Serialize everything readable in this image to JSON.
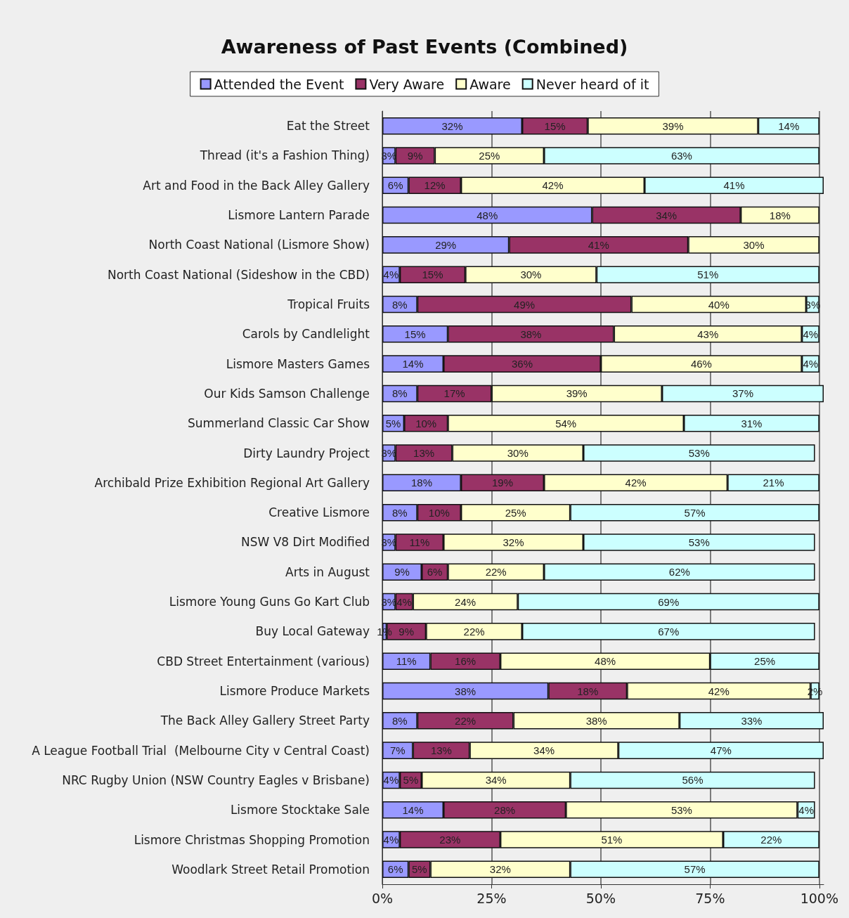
{
  "chart_data": {
    "type": "bar",
    "orientation": "horizontal",
    "stacked": true,
    "title": "Awareness of Past Events (Combined)",
    "categories": [
      "Eat the Street",
      "Thread (it's a Fashion Thing)",
      "Art and Food in the Back Alley Gallery",
      "Lismore Lantern Parade",
      "North Coast National (Lismore Show)",
      "North Coast National (Sideshow in the CBD)",
      "Tropical Fruits",
      "Carols by Candlelight",
      "Lismore Masters Games",
      "Our Kids Samson Challenge",
      "Summerland Classic Car Show",
      "Dirty Laundry Project",
      "Archibald Prize Exhibition Regional Art Gallery",
      "Creative Lismore",
      "NSW V8 Dirt Modified",
      "Arts in August",
      "Lismore Young Guns Go Kart Club",
      "Buy Local Gateway",
      "CBD Street Entertainment (various)",
      "Lismore Produce Markets",
      "The Back Alley Gallery Street Party",
      "A League Football Trial  (Melbourne City v Central Coast)",
      "NRC Rugby Union (NSW Country Eagles v Brisbane)",
      "Lismore Stocktake Sale",
      "Lismore Christmas Shopping Promotion",
      "Woodlark Street Retail Promotion"
    ],
    "series": [
      {
        "name": "Attended the Event",
        "color": "#9999ff",
        "values": [
          32,
          3,
          6,
          48,
          29,
          4,
          8,
          15,
          14,
          8,
          5,
          3,
          18,
          8,
          3,
          9,
          3,
          1,
          11,
          38,
          8,
          7,
          4,
          14,
          4,
          6
        ],
        "value_labels": [
          "32%",
          "3%",
          "6%",
          "48%",
          "29%",
          "4%",
          "8%",
          "15%",
          "14%",
          "8%",
          "5%",
          "3%",
          "18%",
          "8%",
          "3%",
          "9%",
          "3%",
          "1%",
          "11%",
          "38%",
          "8%",
          "7%",
          "4%",
          "14%",
          "4%",
          "6%"
        ]
      },
      {
        "name": "Very Aware",
        "color": "#993366",
        "values": [
          15,
          9,
          12,
          34,
          41,
          15,
          49,
          38,
          36,
          17,
          10,
          13,
          19,
          10,
          11,
          6,
          4,
          9,
          16,
          18,
          22,
          13,
          5,
          28,
          23,
          5
        ],
        "value_labels": [
          "15%",
          "9%",
          "12%",
          "34%",
          "41%",
          "15%",
          "49%",
          "38%",
          "36%",
          "17%",
          "10%",
          "13%",
          "19%",
          "10%",
          "11%",
          "6%",
          "4%",
          "9%",
          "16%",
          "18%",
          "22%",
          "13%",
          "5%",
          "28%",
          "23%",
          "5%"
        ]
      },
      {
        "name": "Aware",
        "color": "#ffffcc",
        "values": [
          39,
          25,
          42,
          18,
          30,
          30,
          40,
          43,
          46,
          39,
          54,
          30,
          42,
          25,
          32,
          22,
          24,
          22,
          48,
          42,
          38,
          34,
          34,
          53,
          51,
          32
        ],
        "value_labels": [
          "39%",
          "25%",
          "42%",
          "18%",
          "30%",
          "30%",
          "40%",
          "43%",
          "46%",
          "39%",
          "54%",
          "30%",
          "42%",
          "25%",
          "32%",
          "22%",
          "24%",
          "22%",
          "48%",
          "42%",
          "38%",
          "34%",
          "34%",
          "53%",
          "51%",
          "32%"
        ]
      },
      {
        "name": "Never heard of it",
        "color": "#ccffff",
        "values": [
          14,
          63,
          41,
          null,
          null,
          51,
          3,
          4,
          4,
          37,
          31,
          53,
          21,
          57,
          53,
          62,
          69,
          67,
          25,
          2,
          33,
          47,
          56,
          4,
          22,
          57
        ],
        "value_labels": [
          "14%",
          "63%",
          "41%",
          null,
          null,
          "51%",
          "3%",
          "4%",
          "4%",
          "37%",
          "31%",
          "53%",
          "21%",
          "57%",
          "53%",
          "62%",
          "69%",
          "67%",
          "25%",
          "2%",
          "33%",
          "47%",
          "56%",
          "4%",
          "22%",
          "57%"
        ]
      }
    ],
    "xlim": [
      0,
      101
    ],
    "xticks": [
      {
        "value": 0,
        "label": "0%"
      },
      {
        "value": 25,
        "label": "25%"
      },
      {
        "value": 50,
        "label": "50%"
      },
      {
        "value": 75,
        "label": "75%"
      },
      {
        "value": 100,
        "label": "100%"
      }
    ],
    "grid": "x",
    "legend": "top"
  }
}
